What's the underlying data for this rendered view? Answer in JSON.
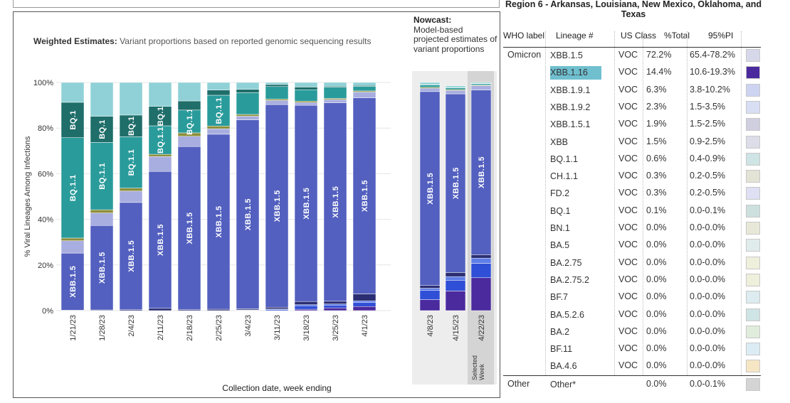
{
  "chart_data": {
    "type": "bar",
    "stacked": true,
    "title": "Weighted Estimates:",
    "subtitle": "Variant proportions based on reported genomic sequencing results",
    "xlabel": "Collection date, week ending",
    "ylabel": "% Viral Lineages Among Infections",
    "ylim": [
      0,
      100
    ],
    "yticks": [
      "0%",
      "20%",
      "40%",
      "60%",
      "80%",
      "100%"
    ],
    "nowcast_title": "Nowcast:",
    "nowcast_subtitle": "Model-based projected estimates of variant proportions",
    "selected_label": "Selected Week",
    "weighted_categories": [
      "1/21/23",
      "1/28/23",
      "2/4/23",
      "2/11/23",
      "2/18/23",
      "2/25/23",
      "3/4/23",
      "3/11/23",
      "3/18/23",
      "3/25/23",
      "4/1/23"
    ],
    "nowcast_categories": [
      "4/8/23",
      "4/15/23",
      "4/22/23"
    ],
    "series": [
      {
        "name": "XBB.1.16",
        "color": "#4b2a9e",
        "values": [
          0.0,
          0.0,
          0.0,
          0.0,
          0.0,
          0.0,
          0.0,
          0.0,
          0.6,
          1.2,
          1.8,
          4.8,
          8.6,
          14.4
        ]
      },
      {
        "name": "XBB.1.9.1",
        "color": "#2f4fd6",
        "values": [
          0.0,
          0.0,
          0.0,
          0.0,
          0.0,
          0.0,
          0.2,
          0.5,
          1.5,
          1.2,
          1.7,
          4.0,
          4.7,
          6.3
        ]
      },
      {
        "name": "XBB.1.9.2",
        "color": "#5f7ee8",
        "values": [
          0.0,
          0.0,
          0.0,
          0.0,
          0.0,
          0.0,
          0.1,
          0.2,
          0.5,
          0.5,
          0.8,
          1.0,
          1.6,
          2.3
        ]
      },
      {
        "name": "XBB",
        "color": "#2b2e72",
        "values": [
          0.2,
          0.3,
          0.4,
          1.0,
          0.4,
          0.6,
          0.5,
          0.8,
          1.4,
          1.2,
          3.0,
          1.2,
          1.8,
          1.5
        ]
      },
      {
        "name": "XBB.1.5",
        "color": "#5360bf",
        "values": [
          25.0,
          37.0,
          47.0,
          60.0,
          71.5,
          76.7,
          82.8,
          88.8,
          86.0,
          87.0,
          86.0,
          85.0,
          78.3,
          72.2
        ]
      },
      {
        "name": "XBB.1.5.1",
        "color": "#a8aee0",
        "values": [
          5.4,
          5.5,
          5.0,
          6.5,
          4.5,
          2.4,
          1.6,
          1.8,
          1.2,
          1.4,
          2.5,
          1.5,
          1.5,
          1.9
        ]
      },
      {
        "name": "CH.1.1",
        "color": "#8e8e3a",
        "values": [
          1.2,
          1.4,
          1.3,
          1.0,
          1.5,
          1.2,
          0.8,
          0.6,
          0.6,
          0.5,
          0.5,
          0.4,
          0.4,
          0.3
        ]
      },
      {
        "name": "BQ.1.1",
        "color": "#2a9b9b",
        "values": [
          44.0,
          29.5,
          22.5,
          12.5,
          10.0,
          13.5,
          9.5,
          5.5,
          5.0,
          5.0,
          2.0,
          1.0,
          0.8,
          0.6
        ]
      },
      {
        "name": "BQ.1",
        "color": "#1f6e6a",
        "values": [
          15.5,
          11.5,
          9.5,
          8.5,
          4.0,
          2.3,
          1.5,
          0.9,
          1.2,
          0.4,
          0.4,
          0.2,
          0.1,
          0.1
        ]
      },
      {
        "name": "Other",
        "color": "#8fd1d6",
        "values": [
          8.7,
          14.8,
          14.3,
          10.5,
          8.1,
          3.3,
          3.0,
          0.9,
          2.0,
          1.6,
          1.3,
          0.9,
          0.7,
          0.4
        ]
      }
    ]
  },
  "header": {
    "region_title": "Region 6 - Arkansas, Louisiana, New Mexico, Oklahoma, and Texas",
    "col_who": "WHO label",
    "col_lineage": "Lineage #",
    "col_class": "US Class",
    "col_total": "%Total",
    "col_pi": "95%PI"
  },
  "table": {
    "group_omicron": "Omicron",
    "group_other": "Other",
    "rows": [
      {
        "lineage": "XBB.1.5",
        "class": "VOC",
        "total": "72.2%",
        "pi": "65.4-78.2%",
        "color": "#d6d8ea",
        "selected": false
      },
      {
        "lineage": "XBB.1.16",
        "class": "VOC",
        "total": "14.4%",
        "pi": "10.6-19.3%",
        "color": "#4b2a9e",
        "selected": true
      },
      {
        "lineage": "XBB.1.9.1",
        "class": "VOC",
        "total": "6.3%",
        "pi": "3.8-10.2%",
        "color": "#cdd4f2",
        "selected": false
      },
      {
        "lineage": "XBB.1.9.2",
        "class": "VOC",
        "total": "2.3%",
        "pi": "1.5-3.5%",
        "color": "#d8def4",
        "selected": false
      },
      {
        "lineage": "XBB.1.5.1",
        "class": "VOC",
        "total": "1.9%",
        "pi": "1.5-2.5%",
        "color": "#cfcfe0",
        "selected": false
      },
      {
        "lineage": "XBB",
        "class": "VOC",
        "total": "1.5%",
        "pi": "0.9-2.5%",
        "color": "#dcdde8",
        "selected": false
      },
      {
        "lineage": "BQ.1.1",
        "class": "VOC",
        "total": "0.6%",
        "pi": "0.4-0.9%",
        "color": "#cfe4e4",
        "selected": false
      },
      {
        "lineage": "CH.1.1",
        "class": "VOC",
        "total": "0.3%",
        "pi": "0.2-0.5%",
        "color": "#e4e4d6",
        "selected": false
      },
      {
        "lineage": "FD.2",
        "class": "VOC",
        "total": "0.3%",
        "pi": "0.2-0.5%",
        "color": "#dfe0f3",
        "selected": false
      },
      {
        "lineage": "BQ.1",
        "class": "VOC",
        "total": "0.1%",
        "pi": "0.0-0.1%",
        "color": "#cde0de",
        "selected": false
      },
      {
        "lineage": "BN.1",
        "class": "VOC",
        "total": "0.0%",
        "pi": "0.0-0.0%",
        "color": "#e8e8d8",
        "selected": false
      },
      {
        "lineage": "BA.5",
        "class": "VOC",
        "total": "0.0%",
        "pi": "0.0-0.0%",
        "color": "#e0ecec",
        "selected": false
      },
      {
        "lineage": "BA.2.75",
        "class": "VOC",
        "total": "0.0%",
        "pi": "0.0-0.0%",
        "color": "#eef0dc",
        "selected": false
      },
      {
        "lineage": "BA.2.75.2",
        "class": "VOC",
        "total": "0.0%",
        "pi": "0.0-0.0%",
        "color": "#eef0dc",
        "selected": false
      },
      {
        "lineage": "BF.7",
        "class": "VOC",
        "total": "0.0%",
        "pi": "0.0-0.0%",
        "color": "#dcecf0",
        "selected": false
      },
      {
        "lineage": "BA.5.2.6",
        "class": "VOC",
        "total": "0.0%",
        "pi": "0.0-0.0%",
        "color": "#cfe4e4",
        "selected": false
      },
      {
        "lineage": "BA.2",
        "class": "VOC",
        "total": "0.0%",
        "pi": "0.0-0.0%",
        "color": "#e0ecdc",
        "selected": false
      },
      {
        "lineage": "BF.11",
        "class": "VOC",
        "total": "0.0%",
        "pi": "0.0-0.0%",
        "color": "#dcecf4",
        "selected": false
      },
      {
        "lineage": "BA.4.6",
        "class": "VOC",
        "total": "0.0%",
        "pi": "0.0-0.0%",
        "color": "#f6e6c4",
        "selected": false
      }
    ],
    "other_row": {
      "lineage": "Other*",
      "class": "",
      "total": "0.0%",
      "pi": "0.0-0.1%",
      "color": "#d4d4d4"
    }
  }
}
